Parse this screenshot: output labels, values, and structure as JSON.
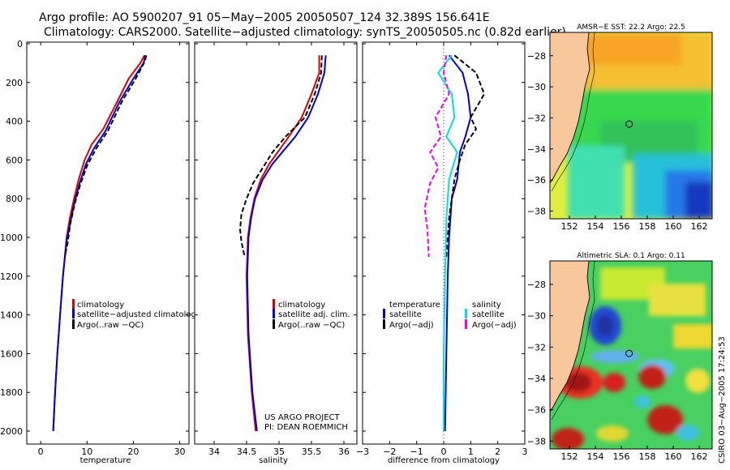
{
  "header": {
    "line1": "Argo profile: AO 5900207_91 05−May−2005 20050507_124 32.389S 156.641E",
    "line2": "Climatology: CARS2000. Satellite−adjusted climatology: synTS_20050505.nc (0.82d earlier)"
  },
  "depth_ticks": [
    "0",
    "200",
    "400",
    "600",
    "800",
    "1000",
    "1200",
    "1400",
    "1600",
    "1800",
    "2000"
  ],
  "side_label": "CSIRO 03−Aug−2005 17:24:53",
  "credit": {
    "line1": "US ARGO PROJECT",
    "line2": "PI: DEAN ROEMMICH"
  },
  "colors": {
    "climatology": "#dd0000",
    "satellite": "#0000dd",
    "argo": "#000000",
    "cyan": "#00e0e0",
    "magenta": "#ee00ee",
    "land": "#f8c89c"
  },
  "chart_data": [
    {
      "type": "line",
      "name": "temperature",
      "xlabel": "temperature",
      "xlim": [
        -3,
        32
      ],
      "ylim": [
        2000,
        0
      ],
      "xticks": [
        "0",
        "10",
        "20",
        "30"
      ],
      "legend": [
        "climatology",
        "satellite−adjusted climatology",
        "Argo(..raw −QC)"
      ],
      "series": [
        {
          "name": "climatology",
          "color": "#dd0000",
          "dash": "",
          "points": [
            [
              22.4,
              60
            ],
            [
              21.5,
              100
            ],
            [
              19,
              180
            ],
            [
              16.5,
              300
            ],
            [
              13.5,
              440
            ],
            [
              11,
              520
            ],
            [
              9.5,
              600
            ],
            [
              8.2,
              700
            ],
            [
              7.2,
              800
            ],
            [
              6.3,
              900
            ],
            [
              5.6,
              1000
            ],
            [
              4.8,
              1200
            ],
            [
              4.2,
              1400
            ],
            [
              3.6,
              1600
            ],
            [
              3.1,
              1800
            ],
            [
              2.7,
              2000
            ]
          ]
        },
        {
          "name": "satellite",
          "color": "#0000dd",
          "dash": "",
          "points": [
            [
              22.6,
              60
            ],
            [
              22.2,
              100
            ],
            [
              20,
              180
            ],
            [
              17,
              300
            ],
            [
              14,
              450
            ],
            [
              11.5,
              540
            ],
            [
              9.8,
              620
            ],
            [
              8.4,
              720
            ],
            [
              7.3,
              820
            ],
            [
              6.4,
              920
            ],
            [
              5.6,
              1020
            ],
            [
              4.8,
              1200
            ],
            [
              4.2,
              1400
            ],
            [
              3.6,
              1600
            ],
            [
              3.1,
              1800
            ],
            [
              2.7,
              2000
            ]
          ]
        },
        {
          "name": "argo",
          "color": "#000000",
          "dash": "6,3",
          "points": [
            [
              22.8,
              60
            ],
            [
              22.5,
              90
            ],
            [
              20.5,
              180
            ],
            [
              17.5,
              300
            ],
            [
              14.5,
              450
            ],
            [
              12,
              540
            ],
            [
              10,
              630
            ],
            [
              8.5,
              730
            ],
            [
              7.3,
              830
            ],
            [
              6.4,
              930
            ],
            [
              5.8,
              1030
            ],
            [
              5.2,
              1100
            ]
          ]
        }
      ]
    },
    {
      "type": "line",
      "name": "salinity",
      "xlabel": "salinity",
      "xlim": [
        33.7,
        36.2
      ],
      "ylim": [
        2000,
        0
      ],
      "xticks": [
        "34",
        "34.5",
        "35",
        "35.5",
        "36"
      ],
      "legend": [
        "climatology",
        "satellite adj. clim.",
        "Argo(..raw −QC)"
      ],
      "series": [
        {
          "name": "climatology",
          "color": "#dd0000",
          "dash": "",
          "points": [
            [
              35.62,
              60
            ],
            [
              35.62,
              150
            ],
            [
              35.5,
              260
            ],
            [
              35.35,
              380
            ],
            [
              35.15,
              480
            ],
            [
              34.98,
              560
            ],
            [
              34.85,
              620
            ],
            [
              34.72,
              700
            ],
            [
              34.62,
              800
            ],
            [
              34.56,
              900
            ],
            [
              34.52,
              1000
            ],
            [
              34.5,
              1200
            ],
            [
              34.52,
              1500
            ],
            [
              34.58,
              1800
            ],
            [
              34.64,
              2000
            ]
          ]
        },
        {
          "name": "satellite",
          "color": "#0000dd",
          "dash": "",
          "points": [
            [
              35.72,
              60
            ],
            [
              35.7,
              150
            ],
            [
              35.6,
              260
            ],
            [
              35.45,
              380
            ],
            [
              35.25,
              480
            ],
            [
              35.05,
              560
            ],
            [
              34.9,
              620
            ],
            [
              34.75,
              700
            ],
            [
              34.63,
              800
            ],
            [
              34.57,
              900
            ],
            [
              34.53,
              1000
            ],
            [
              34.51,
              1200
            ],
            [
              34.53,
              1500
            ],
            [
              34.59,
              1800
            ],
            [
              34.66,
              2000
            ]
          ]
        },
        {
          "name": "argo",
          "color": "#000000",
          "dash": "6,3",
          "points": [
            [
              35.66,
              60
            ],
            [
              35.65,
              150
            ],
            [
              35.55,
              260
            ],
            [
              35.4,
              380
            ],
            [
              35.1,
              480
            ],
            [
              34.9,
              560
            ],
            [
              34.75,
              640
            ],
            [
              34.6,
              720
            ],
            [
              34.5,
              800
            ],
            [
              34.42,
              880
            ],
            [
              34.4,
              960
            ],
            [
              34.42,
              1020
            ],
            [
              34.47,
              1100
            ]
          ]
        }
      ]
    },
    {
      "type": "line",
      "name": "difference",
      "xlabel": "difference from climatology",
      "xlim": [
        -3,
        3
      ],
      "ylim": [
        2000,
        0
      ],
      "xticks": [
        "−3",
        "−2",
        "−1",
        "0",
        "1",
        "2",
        "3"
      ],
      "legend_left": [
        "temperature",
        "satellite",
        "Argo(−adj)"
      ],
      "legend_right": [
        "salinity",
        "satellite",
        "Argo(−adj)"
      ],
      "series": [
        {
          "name": "temp satellite",
          "color": "#0000dd",
          "dash": "",
          "points": [
            [
              0.2,
              60
            ],
            [
              0.7,
              150
            ],
            [
              0.9,
              260
            ],
            [
              1.0,
              380
            ],
            [
              0.8,
              480
            ],
            [
              0.6,
              560
            ],
            [
              0.5,
              700
            ],
            [
              0.3,
              800
            ],
            [
              0.2,
              1000
            ],
            [
              0.15,
              1200
            ],
            [
              0.1,
              1600
            ],
            [
              0.05,
              2000
            ]
          ]
        },
        {
          "name": "temp argo",
          "color": "#000000",
          "dash": "6,3",
          "points": [
            [
              0.4,
              60
            ],
            [
              1.2,
              150
            ],
            [
              1.5,
              260
            ],
            [
              1.0,
              380
            ],
            [
              1.2,
              440
            ],
            [
              0.8,
              520
            ],
            [
              0.6,
              600
            ],
            [
              0.4,
              700
            ],
            [
              0.2,
              900
            ],
            [
              0.1,
              1100
            ]
          ]
        },
        {
          "name": "sal satellite",
          "color": "#00e0e0",
          "dash": "",
          "points": [
            [
              0.3,
              60
            ],
            [
              -0.2,
              150
            ],
            [
              0.3,
              260
            ],
            [
              0.4,
              380
            ],
            [
              0.1,
              480
            ],
            [
              0.5,
              560
            ],
            [
              0.2,
              700
            ],
            [
              0.1,
              900
            ],
            [
              0.05,
              1200
            ],
            [
              0.0,
              1600
            ],
            [
              0.0,
              2000
            ]
          ]
        },
        {
          "name": "sal argo",
          "color": "#ee00ee",
          "dash": "6,3",
          "points": [
            [
              0.1,
              60
            ],
            [
              0.0,
              150
            ],
            [
              0.2,
              260
            ],
            [
              -0.3,
              380
            ],
            [
              -0.1,
              480
            ],
            [
              -0.5,
              560
            ],
            [
              -0.2,
              640
            ],
            [
              -0.5,
              720
            ],
            [
              -0.7,
              850
            ],
            [
              -0.6,
              960
            ],
            [
              -0.55,
              1100
            ]
          ]
        }
      ]
    },
    {
      "type": "heatmap",
      "name": "amsr-sst-map",
      "title": "AMSR−E SST: 22.2 Argo: 22.5",
      "xticks": [
        "152",
        "154",
        "156",
        "158",
        "160",
        "162"
      ],
      "yticks": [
        "−28",
        "−30",
        "−32",
        "−34",
        "−36",
        "−38"
      ],
      "xlim": [
        150.5,
        163
      ],
      "ylim": [
        -38.5,
        -26.5
      ],
      "marker": [
        156.6,
        -32.4
      ]
    },
    {
      "type": "heatmap",
      "name": "altimetric-sla-map",
      "title": "Altimetric SLA: 0.1 Argo: 0.11",
      "xticks": [
        "152",
        "154",
        "156",
        "158",
        "160",
        "162"
      ],
      "yticks": [
        "−28",
        "−30",
        "−32",
        "−34",
        "−36",
        "−38"
      ],
      "xlim": [
        150.5,
        163
      ],
      "ylim": [
        -38.5,
        -26.5
      ],
      "marker": [
        156.6,
        -32.4
      ]
    }
  ]
}
